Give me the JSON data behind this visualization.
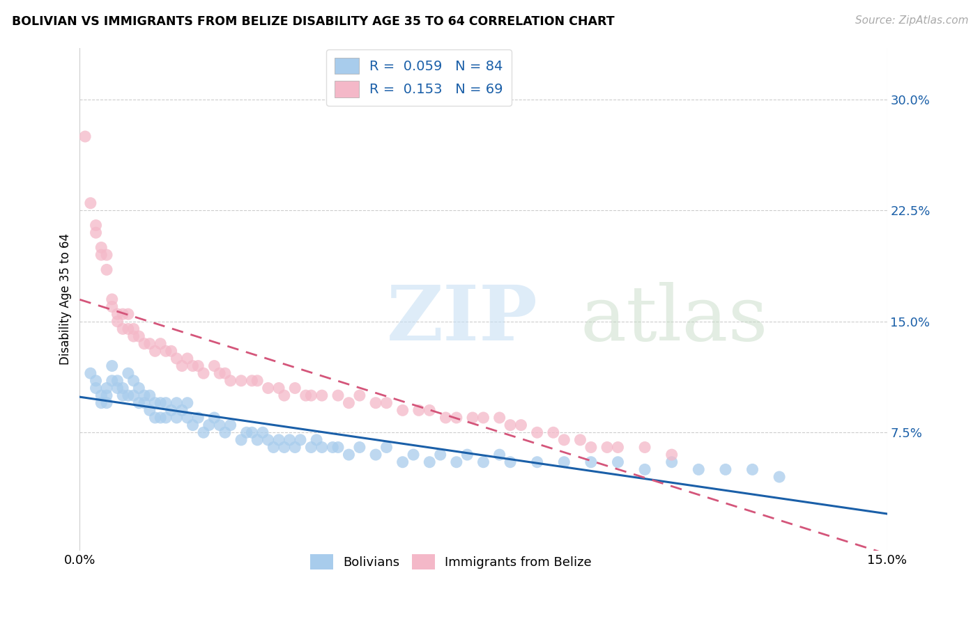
{
  "title": "BOLIVIAN VS IMMIGRANTS FROM BELIZE DISABILITY AGE 35 TO 64 CORRELATION CHART",
  "source": "Source: ZipAtlas.com",
  "ylabel": "Disability Age 35 to 64",
  "ytick_labels": [
    "7.5%",
    "15.0%",
    "22.5%",
    "30.0%"
  ],
  "ytick_values": [
    0.075,
    0.15,
    0.225,
    0.3
  ],
  "xlim": [
    0.0,
    0.15
  ],
  "ylim": [
    -0.005,
    0.335
  ],
  "legend_label1": "Bolivians",
  "legend_label2": "Immigrants from Belize",
  "blue_color": "#a8ccec",
  "pink_color": "#f4b8c8",
  "trend_blue": "#1a5fa8",
  "trend_pink": "#d4557a",
  "blue_scatter_x": [
    0.002,
    0.003,
    0.003,
    0.004,
    0.004,
    0.005,
    0.005,
    0.005,
    0.006,
    0.006,
    0.007,
    0.007,
    0.008,
    0.008,
    0.009,
    0.009,
    0.01,
    0.01,
    0.011,
    0.011,
    0.012,
    0.012,
    0.013,
    0.013,
    0.014,
    0.014,
    0.015,
    0.015,
    0.016,
    0.016,
    0.017,
    0.018,
    0.018,
    0.019,
    0.02,
    0.02,
    0.021,
    0.022,
    0.023,
    0.024,
    0.025,
    0.026,
    0.027,
    0.028,
    0.03,
    0.031,
    0.032,
    0.033,
    0.034,
    0.035,
    0.036,
    0.037,
    0.038,
    0.039,
    0.04,
    0.041,
    0.043,
    0.044,
    0.045,
    0.047,
    0.048,
    0.05,
    0.052,
    0.055,
    0.057,
    0.06,
    0.062,
    0.065,
    0.067,
    0.07,
    0.072,
    0.075,
    0.078,
    0.08,
    0.085,
    0.09,
    0.095,
    0.1,
    0.105,
    0.11,
    0.115,
    0.12,
    0.125,
    0.13
  ],
  "blue_scatter_y": [
    0.115,
    0.11,
    0.105,
    0.1,
    0.095,
    0.105,
    0.1,
    0.095,
    0.12,
    0.11,
    0.11,
    0.105,
    0.105,
    0.1,
    0.115,
    0.1,
    0.11,
    0.1,
    0.105,
    0.095,
    0.1,
    0.095,
    0.1,
    0.09,
    0.095,
    0.085,
    0.095,
    0.085,
    0.095,
    0.085,
    0.09,
    0.095,
    0.085,
    0.09,
    0.095,
    0.085,
    0.08,
    0.085,
    0.075,
    0.08,
    0.085,
    0.08,
    0.075,
    0.08,
    0.07,
    0.075,
    0.075,
    0.07,
    0.075,
    0.07,
    0.065,
    0.07,
    0.065,
    0.07,
    0.065,
    0.07,
    0.065,
    0.07,
    0.065,
    0.065,
    0.065,
    0.06,
    0.065,
    0.06,
    0.065,
    0.055,
    0.06,
    0.055,
    0.06,
    0.055,
    0.06,
    0.055,
    0.06,
    0.055,
    0.055,
    0.055,
    0.055,
    0.055,
    0.05,
    0.055,
    0.05,
    0.05,
    0.05,
    0.045
  ],
  "pink_scatter_x": [
    0.001,
    0.002,
    0.003,
    0.003,
    0.004,
    0.004,
    0.005,
    0.005,
    0.006,
    0.006,
    0.007,
    0.007,
    0.008,
    0.008,
    0.009,
    0.009,
    0.01,
    0.01,
    0.011,
    0.012,
    0.013,
    0.014,
    0.015,
    0.016,
    0.017,
    0.018,
    0.019,
    0.02,
    0.021,
    0.022,
    0.023,
    0.025,
    0.026,
    0.027,
    0.028,
    0.03,
    0.032,
    0.033,
    0.035,
    0.037,
    0.038,
    0.04,
    0.042,
    0.043,
    0.045,
    0.048,
    0.05,
    0.052,
    0.055,
    0.057,
    0.06,
    0.063,
    0.065,
    0.068,
    0.07,
    0.073,
    0.075,
    0.078,
    0.08,
    0.082,
    0.085,
    0.088,
    0.09,
    0.093,
    0.095,
    0.098,
    0.1,
    0.105,
    0.11
  ],
  "pink_scatter_y": [
    0.275,
    0.23,
    0.215,
    0.21,
    0.2,
    0.195,
    0.195,
    0.185,
    0.165,
    0.16,
    0.155,
    0.15,
    0.155,
    0.145,
    0.155,
    0.145,
    0.145,
    0.14,
    0.14,
    0.135,
    0.135,
    0.13,
    0.135,
    0.13,
    0.13,
    0.125,
    0.12,
    0.125,
    0.12,
    0.12,
    0.115,
    0.12,
    0.115,
    0.115,
    0.11,
    0.11,
    0.11,
    0.11,
    0.105,
    0.105,
    0.1,
    0.105,
    0.1,
    0.1,
    0.1,
    0.1,
    0.095,
    0.1,
    0.095,
    0.095,
    0.09,
    0.09,
    0.09,
    0.085,
    0.085,
    0.085,
    0.085,
    0.085,
    0.08,
    0.08,
    0.075,
    0.075,
    0.07,
    0.07,
    0.065,
    0.065,
    0.065,
    0.065,
    0.06
  ]
}
